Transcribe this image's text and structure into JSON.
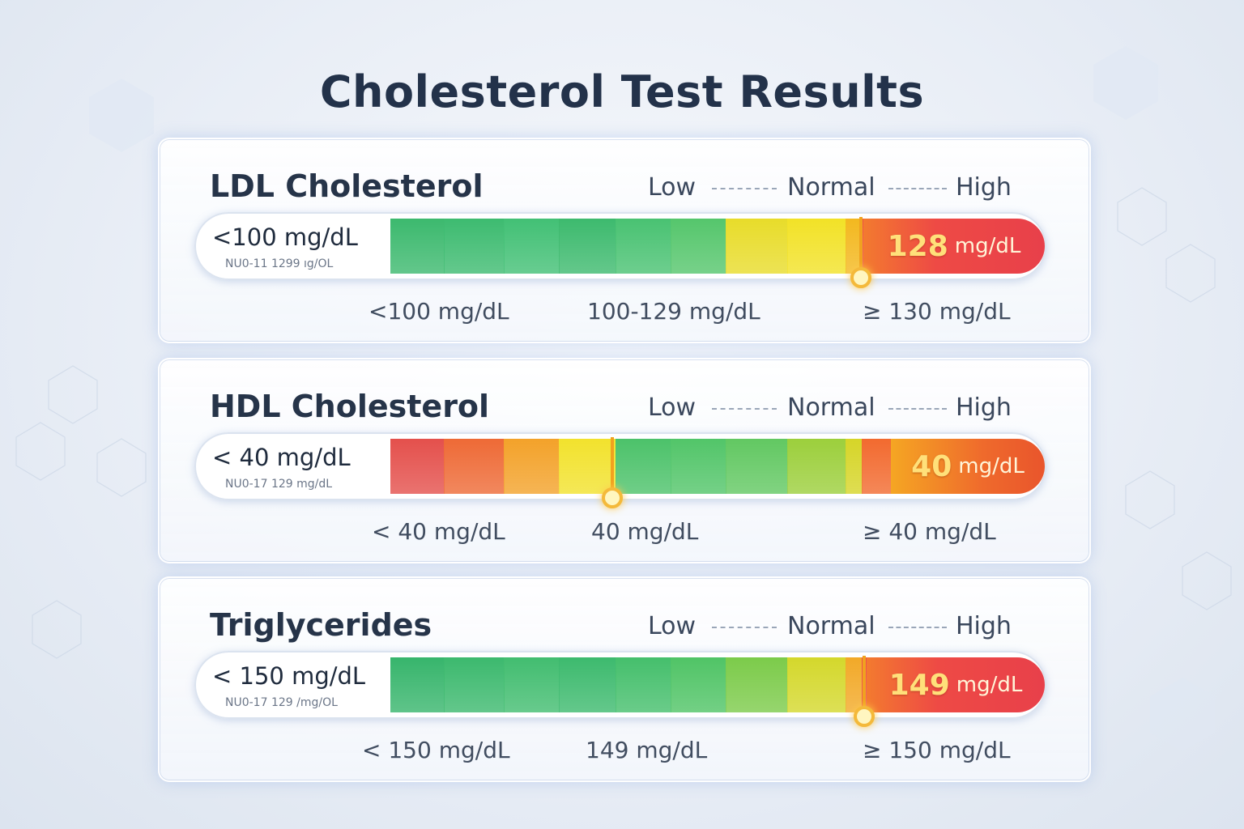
{
  "title": "Cholesterol Test Results",
  "panels": [
    {
      "name": "LDL Cholesterol",
      "scale": {
        "low": "Low",
        "normal": "Normal",
        "high": "High"
      },
      "reference_main": "<100 mg/dL",
      "reference_sub": "NU0-11 1299 ıg/OL",
      "result_value": "128",
      "result_unit": "mg/dL",
      "status": "High",
      "range_labels": [
        "<100 mg/dL",
        "100-129 mg/dL",
        "≥ 130 mg/dL"
      ],
      "colors": [
        "#3cb96e",
        "#3dbb70",
        "#42c075",
        "#3dba6e",
        "#49c272",
        "#55c66c",
        "#e8dc2a",
        "#f2e227",
        "#f3b81f",
        "#ee4d46"
      ]
    },
    {
      "name": "HDL Cholesterol",
      "scale": {
        "low": "Low",
        "normal": "Normal",
        "high": "High"
      },
      "reference_main": "< 40 mg/dL",
      "reference_sub": "NU0-17 129 mg/dL",
      "result_value": "40",
      "result_unit": "mg/dL",
      "status": "High",
      "range_labels": [
        "< 40 mg/dL",
        "40 mg/dL",
        "≥ 40 mg/dL"
      ],
      "colors": [
        "#e4504c",
        "#ee6a36",
        "#f3a22a",
        "#f2e22d",
        "#4cc26a",
        "#52c569",
        "#62c862",
        "#9ccf3c",
        "#d6d528",
        "#f26a2f"
      ]
    },
    {
      "name": "Triglycerides",
      "scale": {
        "low": "Low",
        "normal": "Normal",
        "high": "High"
      },
      "reference_main": "< 150 mg/dL",
      "reference_sub": "NU0-17 129 /mg/OL",
      "result_value": "149",
      "result_unit": "mg/dL",
      "status": "High",
      "range_labels": [
        "< 150 mg/dL",
        "149 mg/dL",
        "≥ 150 mg/dL"
      ],
      "colors": [
        "#37b56c",
        "#3cb96e",
        "#42bd70",
        "#3dba6e",
        "#45bf6c",
        "#50c466",
        "#7ccb4a",
        "#d4d82c",
        "#f2a928",
        "#ee4c47"
      ]
    }
  ]
}
